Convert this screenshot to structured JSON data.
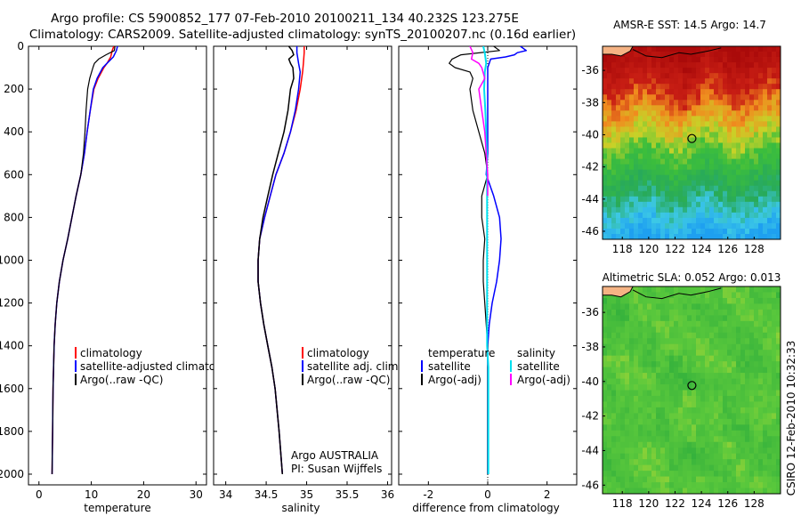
{
  "header": {
    "line1": "Argo profile: CS 5900852_177 07-Feb-2010 20100211_134 40.232S 123.275E",
    "line2": "Climatology: CARS2009. Satellite-adjusted climatology: synTS_20100207.nc (0.16d earlier)"
  },
  "colors": {
    "climatology": "#ff0000",
    "satellite": "#0000ff",
    "argo": "#000000",
    "satellite_salinity": "#00e0f0",
    "argo_salinity": "#ff00ff"
  },
  "chart_data": [
    {
      "type": "line",
      "title": "",
      "xlabel": "temperature",
      "ylabel": "",
      "xlim": [
        -2,
        32
      ],
      "ylim": [
        2050,
        0
      ],
      "xticks": [
        0,
        10,
        20,
        30
      ],
      "yticks": [
        0,
        200,
        400,
        600,
        800,
        1000,
        1200,
        1400,
        1600,
        1800,
        2000
      ],
      "series": [
        {
          "name": "climatology",
          "color": "#ff0000",
          "width": 1.5,
          "depth": [
            0,
            20,
            50,
            80,
            100,
            150,
            200,
            300,
            400,
            500,
            600,
            700,
            800,
            900,
            1000,
            1100,
            1200,
            1300,
            1400,
            1500,
            1600,
            1800,
            2000
          ],
          "values": [
            14.3,
            14.0,
            13.7,
            13.0,
            12.4,
            11.3,
            10.5,
            9.8,
            9.2,
            8.7,
            8.0,
            7.1,
            6.3,
            5.5,
            4.6,
            3.9,
            3.4,
            3.1,
            2.9,
            2.8,
            2.7,
            2.6,
            2.5
          ]
        },
        {
          "name": "satellite-adjusted climatology",
          "color": "#0000ff",
          "width": 1.5,
          "depth": [
            0,
            20,
            50,
            80,
            100,
            150,
            200,
            300,
            400,
            500,
            600,
            700,
            800,
            900,
            1000,
            1100,
            1200,
            1300,
            1400,
            1500,
            1600,
            1800,
            2000
          ],
          "values": [
            15.0,
            14.8,
            14.2,
            13.0,
            12.2,
            11.1,
            10.4,
            9.8,
            9.2,
            8.7,
            8.0,
            7.1,
            6.3,
            5.5,
            4.6,
            3.9,
            3.4,
            3.1,
            2.9,
            2.8,
            2.7,
            2.6,
            2.5
          ]
        },
        {
          "name": "Argo(..raw -QC)",
          "color": "#000000",
          "width": 1.2,
          "depth": [
            0,
            20,
            40,
            60,
            80,
            100,
            150,
            200,
            300,
            400,
            500,
            600,
            700,
            800,
            900,
            1000,
            1100,
            1200,
            1300,
            1400,
            1500,
            1600,
            1800,
            2000
          ],
          "values": [
            14.5,
            14.4,
            12.8,
            11.4,
            10.6,
            10.3,
            9.7,
            9.3,
            9.0,
            8.8,
            8.5,
            8.0,
            7.1,
            6.3,
            5.5,
            4.6,
            3.9,
            3.4,
            3.1,
            2.9,
            2.8,
            2.7,
            2.6,
            2.5
          ]
        }
      ],
      "legend": [
        "climatology",
        "satellite-adjusted climatology",
        "Argo(..raw -QC)"
      ]
    },
    {
      "type": "line",
      "title": "",
      "xlabel": "salinity",
      "ylabel": "",
      "xlim": [
        33.85,
        36.05
      ],
      "ylim": [
        2050,
        0
      ],
      "xticks": [
        34,
        34.5,
        35,
        35.5,
        36
      ],
      "series": [
        {
          "name": "climatology",
          "color": "#ff0000",
          "width": 1.5,
          "depth": [
            0,
            30,
            80,
            120,
            200,
            300,
            400,
            500,
            600,
            700,
            800,
            900,
            1000,
            1100,
            1200,
            1300,
            1400,
            1500,
            1600,
            1800,
            2000
          ],
          "values": [
            34.97,
            34.97,
            34.96,
            34.95,
            34.92,
            34.87,
            34.8,
            34.72,
            34.62,
            34.55,
            34.48,
            34.42,
            34.4,
            34.4,
            34.43,
            34.47,
            34.52,
            34.57,
            34.61,
            34.66,
            34.7
          ]
        },
        {
          "name": "satellite adj. clim.",
          "color": "#0000ff",
          "width": 1.5,
          "depth": [
            0,
            30,
            80,
            120,
            200,
            300,
            400,
            500,
            600,
            700,
            800,
            900,
            1000,
            1100,
            1200,
            1300,
            1400,
            1500,
            1600,
            1800,
            2000
          ],
          "values": [
            34.88,
            34.88,
            34.9,
            34.92,
            34.9,
            34.86,
            34.8,
            34.72,
            34.62,
            34.55,
            34.48,
            34.42,
            34.4,
            34.4,
            34.43,
            34.47,
            34.52,
            34.57,
            34.61,
            34.66,
            34.7
          ]
        },
        {
          "name": "Argo(..raw -QC)",
          "color": "#000000",
          "width": 1.5,
          "depth": [
            0,
            20,
            40,
            60,
            80,
            100,
            150,
            200,
            300,
            400,
            500,
            600,
            700,
            800,
            900,
            1000,
            1100,
            1200,
            1300,
            1400,
            1500,
            1600,
            1800,
            2000
          ],
          "values": [
            34.78,
            34.82,
            34.84,
            34.78,
            34.8,
            34.83,
            34.84,
            34.8,
            34.77,
            34.72,
            34.65,
            34.58,
            34.52,
            34.46,
            34.42,
            34.4,
            34.4,
            34.43,
            34.47,
            34.52,
            34.57,
            34.61,
            34.66,
            34.7
          ]
        }
      ],
      "legend": [
        "climatology",
        "satellite adj. clim.",
        "Argo(..raw -QC)"
      ],
      "annotation": [
        "Argo AUSTRALIA",
        "PI: Susan Wijffels"
      ]
    },
    {
      "type": "line",
      "title": "",
      "xlabel": "difference from climatology",
      "ylabel": "",
      "xlim": [
        -3,
        3
      ],
      "ylim": [
        2050,
        0
      ],
      "xticks": [
        -2,
        0,
        2
      ],
      "series": [
        {
          "name": "temperature satellite",
          "color": "#0000ff",
          "width": 1.5,
          "depth": [
            0,
            20,
            30,
            40,
            50,
            60,
            80,
            100,
            150,
            200,
            300,
            400,
            500,
            600,
            700,
            800,
            900,
            1000,
            1100,
            1200,
            1300,
            1400,
            1600,
            1800,
            2000
          ],
          "values": [
            1.1,
            1.3,
            1.0,
            0.9,
            0.6,
            0.1,
            0.05,
            0.0,
            0.0,
            0.0,
            0.0,
            0.0,
            0.0,
            -0.05,
            0.2,
            0.4,
            0.45,
            0.4,
            0.3,
            0.15,
            0.05,
            0.0,
            0.0,
            0.0,
            0.0
          ]
        },
        {
          "name": "temperature Argo(-adj)",
          "color": "#000000",
          "width": 1.2,
          "depth": [
            0,
            20,
            40,
            60,
            80,
            100,
            120,
            150,
            200,
            300,
            400,
            500,
            600,
            700,
            800,
            900,
            1000,
            1100,
            1200,
            1300,
            1400,
            1600,
            1800,
            2000
          ],
          "values": [
            0.2,
            0.4,
            -0.9,
            -1.2,
            -1.3,
            -1.1,
            -0.6,
            -0.5,
            -0.6,
            -0.5,
            -0.3,
            -0.1,
            0.0,
            -0.2,
            -0.2,
            -0.1,
            -0.15,
            -0.15,
            -0.1,
            -0.05,
            0.0,
            0.0,
            0.0,
            0.0
          ]
        },
        {
          "name": "salinity satellite",
          "color": "#00e0f0",
          "width": 2,
          "depth": [
            0,
            30,
            80,
            120,
            200,
            300,
            400,
            500,
            600,
            700,
            800,
            1000,
            1200,
            1400,
            1500,
            1600,
            1800,
            2000
          ],
          "values": [
            -0.15,
            -0.1,
            -0.05,
            -0.1,
            -0.12,
            -0.08,
            -0.05,
            -0.03,
            -0.02,
            -0.02,
            -0.02,
            -0.02,
            -0.02,
            -0.02,
            0.02,
            0.02,
            0.02,
            0.02
          ]
        },
        {
          "name": "salinity Argo(-adj)",
          "color": "#ff00ff",
          "width": 1.5,
          "depth": [
            0,
            30,
            60,
            80,
            100,
            150,
            200,
            300,
            400,
            500,
            600,
            700
          ],
          "values": [
            -0.6,
            -0.5,
            -0.55,
            -0.3,
            -0.2,
            -0.1,
            -0.3,
            -0.2,
            -0.1,
            -0.05,
            0.0,
            0.0
          ]
        }
      ],
      "legend_left": [
        "temperature",
        "satellite",
        "Argo(-adj)"
      ],
      "legend_right": [
        "salinity",
        "satellite",
        "Argo(-adj)"
      ]
    },
    {
      "type": "heatmap",
      "title": "AMSR-E SST: 14.5 Argo: 14.7",
      "xlim": [
        116.5,
        130
      ],
      "ylim": [
        -46.5,
        -34.5
      ],
      "xticks": [
        118,
        120,
        122,
        124,
        126,
        128
      ],
      "yticks": [
        -36,
        -38,
        -40,
        -42,
        -44,
        -46
      ],
      "marker": {
        "lon": 123.275,
        "lat": -40.232
      }
    },
    {
      "type": "heatmap",
      "title": "Altimetric SLA: 0.052 Argo: 0.013",
      "xlim": [
        116.5,
        130
      ],
      "ylim": [
        -46.5,
        -34.5
      ],
      "xticks": [
        118,
        120,
        122,
        124,
        126,
        128
      ],
      "yticks": [
        -36,
        -38,
        -40,
        -42,
        -44,
        -46
      ],
      "marker": {
        "lon": 123.275,
        "lat": -40.232
      }
    }
  ],
  "footer": {
    "credit": "CSIRO 12-Feb-2010 10:32:33"
  }
}
